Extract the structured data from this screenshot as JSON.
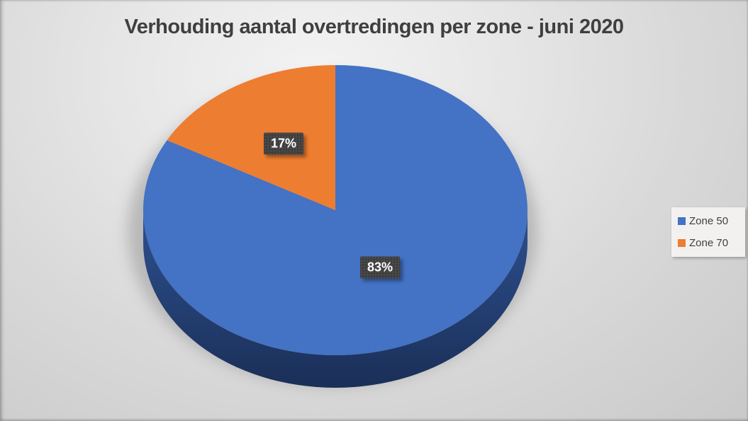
{
  "title": "Verhouding aantal overtredingen per zone - juni 2020",
  "chart_data": {
    "type": "pie",
    "title": "Verhouding aantal overtredingen per zone - juni 2020",
    "unit": "%",
    "style": "3d",
    "start_angle_deg": 0,
    "direction": "clockwise",
    "legend_position": "right",
    "slices": [
      {
        "name": "Zone 50",
        "value": 83,
        "label": "83%",
        "color": "#4472C4",
        "label_radius": 0.46
      },
      {
        "name": "Zone 70",
        "value": 17,
        "label": "17%",
        "color": "#ED7D31",
        "label_radius": 0.53
      }
    ],
    "legend": [
      {
        "label": "Zone 50",
        "color": "#4472C4"
      },
      {
        "label": "Zone 70",
        "color": "#ED7D31"
      }
    ],
    "side_gradient": [
      "#2E5191",
      "#1A2F57"
    ]
  },
  "colors": {
    "title_text": "#3F3F3F",
    "label_box": "#3E3E3E",
    "label_text": "#FFFFFF",
    "legend_bg": "#F2F1EF",
    "legend_text": "#404040",
    "background_center": "#F3F3F3",
    "background_edge": "#C9C9C9"
  }
}
